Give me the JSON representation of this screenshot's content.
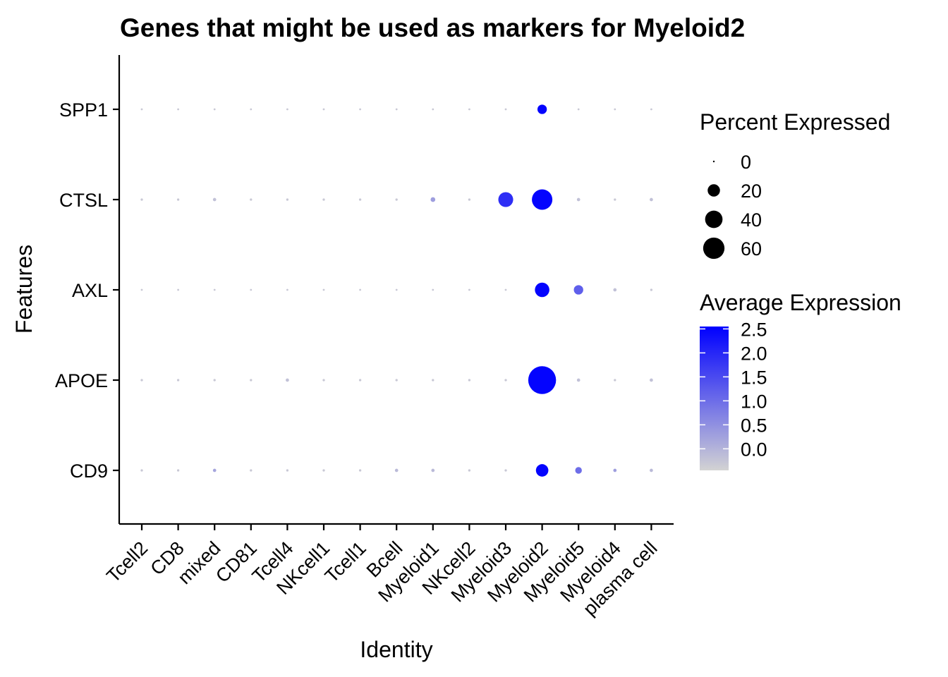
{
  "chart_data": {
    "type": "scatter",
    "subtype": "dot_plot",
    "title": "Genes that might be used as markers for Myeloid2",
    "xlabel": "Identity",
    "ylabel": "Features",
    "categories": [
      "Tcell2",
      "CD8",
      "mixed",
      "CD81",
      "Tcell4",
      "NKcell1",
      "Tcell1",
      "Bcell",
      "Myeloid1",
      "NKcell2",
      "Myeloid3",
      "Myeloid2",
      "Myeloid5",
      "Myeloid4",
      "plasma cell"
    ],
    "features": [
      "CD9",
      "APOE",
      "AXL",
      "CTSL",
      "SPP1"
    ],
    "grid": false,
    "color_low": "#d3d3d3",
    "color_high": "#0000ff",
    "legend_position": "right",
    "size_legend": {
      "title": "Percent Expressed",
      "values": [
        0,
        20,
        40,
        60
      ],
      "labels": [
        "0",
        "20",
        "40",
        "60"
      ]
    },
    "color_legend": {
      "title": "Average Expression",
      "ticks": [
        2.5,
        2.0,
        1.5,
        1.0,
        0.5,
        0.0
      ],
      "tick_labels": [
        "2.5",
        "2.0",
        "1.5",
        "1.0",
        "0.5",
        "0.0"
      ],
      "range": [
        -0.45,
        2.55
      ]
    },
    "series": [
      {
        "feature": "SPP1",
        "pct": [
          0,
          0,
          0,
          0,
          0,
          0,
          0,
          0,
          0,
          0,
          0,
          8,
          0,
          0,
          0
        ],
        "avg_exp": [
          -0.3,
          -0.3,
          -0.3,
          -0.3,
          -0.3,
          -0.3,
          -0.3,
          -0.3,
          -0.3,
          -0.3,
          -0.3,
          2.5,
          -0.3,
          -0.3,
          -0.3
        ]
      },
      {
        "feature": "CTSL",
        "pct": [
          0.5,
          0.5,
          1,
          0.5,
          0.5,
          0.5,
          0.5,
          0.5,
          2,
          0.5,
          20,
          38,
          1,
          0.5,
          1
        ],
        "avg_exp": [
          -0.3,
          -0.3,
          -0.2,
          -0.3,
          -0.3,
          -0.3,
          -0.3,
          -0.3,
          0.3,
          -0.3,
          1.9,
          2.5,
          -0.2,
          -0.3,
          -0.2
        ]
      },
      {
        "feature": "AXL",
        "pct": [
          0.3,
          0.3,
          0.3,
          0.3,
          0.3,
          0.3,
          0.3,
          0.3,
          0.3,
          0.3,
          0.3,
          19,
          8,
          1,
          0.5
        ],
        "avg_exp": [
          -0.3,
          -0.3,
          -0.3,
          -0.3,
          -0.3,
          -0.3,
          -0.3,
          -0.3,
          -0.3,
          -0.3,
          -0.3,
          2.5,
          1.2,
          -0.2,
          -0.3
        ]
      },
      {
        "feature": "APOE",
        "pct": [
          0.5,
          0.5,
          0.5,
          0.5,
          1,
          0.5,
          0.5,
          0.5,
          0.5,
          0.5,
          0.5,
          70,
          1,
          0.5,
          1
        ],
        "avg_exp": [
          -0.3,
          -0.3,
          -0.3,
          -0.3,
          -0.2,
          -0.3,
          -0.3,
          -0.3,
          -0.3,
          -0.3,
          -0.3,
          2.5,
          -0.2,
          -0.3,
          -0.2
        ]
      },
      {
        "feature": "CD9",
        "pct": [
          0.5,
          0.5,
          1,
          0.5,
          0.5,
          0.5,
          0.5,
          1,
          1,
          0.5,
          0.5,
          14,
          4,
          1,
          1
        ],
        "avg_exp": [
          -0.3,
          -0.3,
          0.2,
          -0.3,
          -0.3,
          -0.3,
          -0.3,
          -0.1,
          -0.1,
          -0.3,
          -0.3,
          2.5,
          1.0,
          0.3,
          -0.1
        ]
      }
    ]
  }
}
